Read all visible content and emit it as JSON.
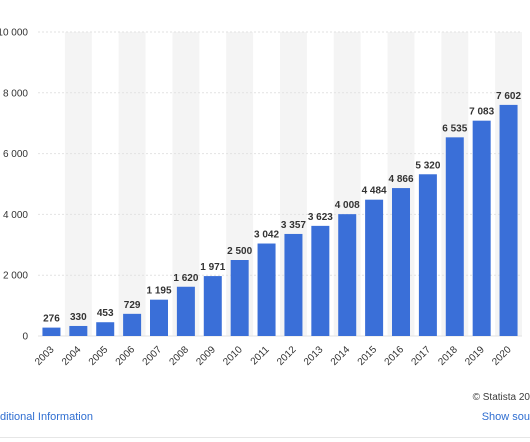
{
  "colors": {
    "bar": "#3a6fd8",
    "band": "#f4f4f4",
    "grid": "#e2e2e2",
    "text": "#333333",
    "link": "#2f6ed1"
  },
  "credit": "© Statista 20",
  "footer": {
    "additional_info": "ditional Information",
    "show_source": "Show sou"
  },
  "chart_data": {
    "type": "bar",
    "categories": [
      "2003",
      "2004",
      "2005",
      "2006",
      "2007",
      "2008",
      "2009",
      "2010",
      "2011",
      "2012",
      "2013",
      "2014",
      "2015",
      "2016",
      "2017",
      "2018",
      "2019",
      "2020"
    ],
    "values": [
      276,
      330,
      453,
      729,
      1195,
      1620,
      1971,
      2500,
      3042,
      3357,
      3623,
      4008,
      4484,
      4866,
      5320,
      6535,
      7083,
      7602
    ],
    "value_labels": [
      "276",
      "330",
      "453",
      "729",
      "1 195",
      "1 620",
      "1 971",
      "2 500",
      "3 042",
      "3 357",
      "3 623",
      "4 008",
      "4 484",
      "4 866",
      "5 320",
      "6 535",
      "7 083",
      "7 602"
    ],
    "ylim": [
      0,
      10000
    ],
    "yticks": [
      0,
      2000,
      4000,
      6000,
      8000,
      10000
    ],
    "ytick_labels": [
      "0",
      "2 000",
      "4 000",
      "6 000",
      "8 000",
      "10 000"
    ],
    "grid": true
  }
}
